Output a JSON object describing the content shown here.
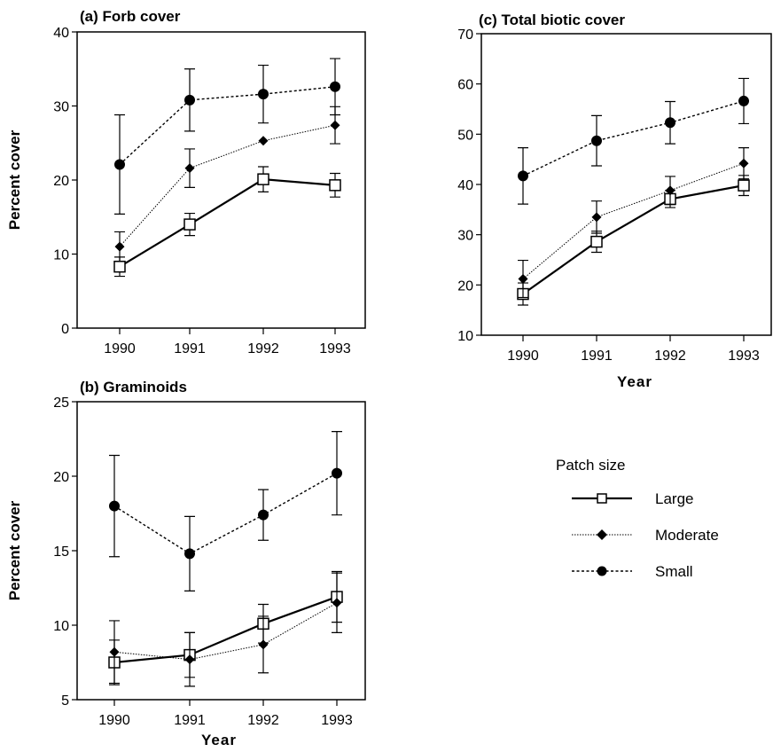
{
  "chart_data": [
    {
      "type": "line",
      "title": "(a)  Forb  cover",
      "ylabel": "Percent  cover",
      "xlabel": "",
      "x": [
        "1990",
        "1991",
        "1992",
        "1993"
      ],
      "ylim": [
        0,
        40
      ],
      "yticks": [
        0,
        10,
        20,
        30,
        40
      ],
      "series": [
        {
          "name": "Large",
          "values": [
            8.3,
            14.0,
            20.1,
            19.3
          ],
          "err": [
            1.3,
            1.5,
            1.7,
            1.6
          ]
        },
        {
          "name": "Moderate",
          "values": [
            11.0,
            21.6,
            25.3,
            27.4
          ],
          "err": [
            2.0,
            2.6,
            0.0,
            2.5
          ]
        },
        {
          "name": "Small",
          "values": [
            22.1,
            30.8,
            31.6,
            32.6
          ],
          "err": [
            6.7,
            4.2,
            3.9,
            3.8
          ]
        }
      ]
    },
    {
      "type": "line",
      "title": "(b)  Graminoids",
      "ylabel": "Percent  cover",
      "xlabel": "Year",
      "x": [
        "1990",
        "1991",
        "1992",
        "1993"
      ],
      "ylim": [
        5,
        25
      ],
      "yticks": [
        5,
        10,
        15,
        20,
        25
      ],
      "series": [
        {
          "name": "Large",
          "values": [
            7.5,
            8.0,
            10.1,
            11.9
          ],
          "err": [
            1.5,
            1.5,
            1.3,
            1.7
          ]
        },
        {
          "name": "Moderate",
          "values": [
            8.2,
            7.7,
            8.7,
            11.5
          ],
          "err": [
            2.1,
            1.8,
            1.9,
            2.0
          ]
        },
        {
          "name": "Small",
          "values": [
            18.0,
            14.8,
            17.4,
            20.2
          ],
          "err": [
            3.4,
            2.5,
            1.7,
            2.8
          ]
        }
      ]
    },
    {
      "type": "line",
      "title": "(c)  Total  biotic  cover",
      "ylabel": "",
      "xlabel": "Year",
      "x": [
        "1990",
        "1991",
        "1992",
        "1993"
      ],
      "ylim": [
        10,
        70
      ],
      "yticks": [
        10,
        20,
        30,
        40,
        50,
        60,
        70
      ],
      "series": [
        {
          "name": "Large",
          "values": [
            18.2,
            28.6,
            37.1,
            39.8
          ],
          "err": [
            2.2,
            2.1,
            1.7,
            2.0
          ]
        },
        {
          "name": "Moderate",
          "values": [
            21.2,
            33.5,
            38.8,
            44.2
          ],
          "err": [
            3.7,
            3.2,
            2.8,
            3.1
          ]
        },
        {
          "name": "Small",
          "values": [
            41.7,
            48.7,
            52.3,
            56.6
          ],
          "err": [
            5.6,
            5.0,
            4.2,
            4.5
          ]
        }
      ]
    }
  ],
  "legend": {
    "title": "Patch size",
    "entries": [
      "Large",
      "Moderate",
      "Small"
    ]
  }
}
